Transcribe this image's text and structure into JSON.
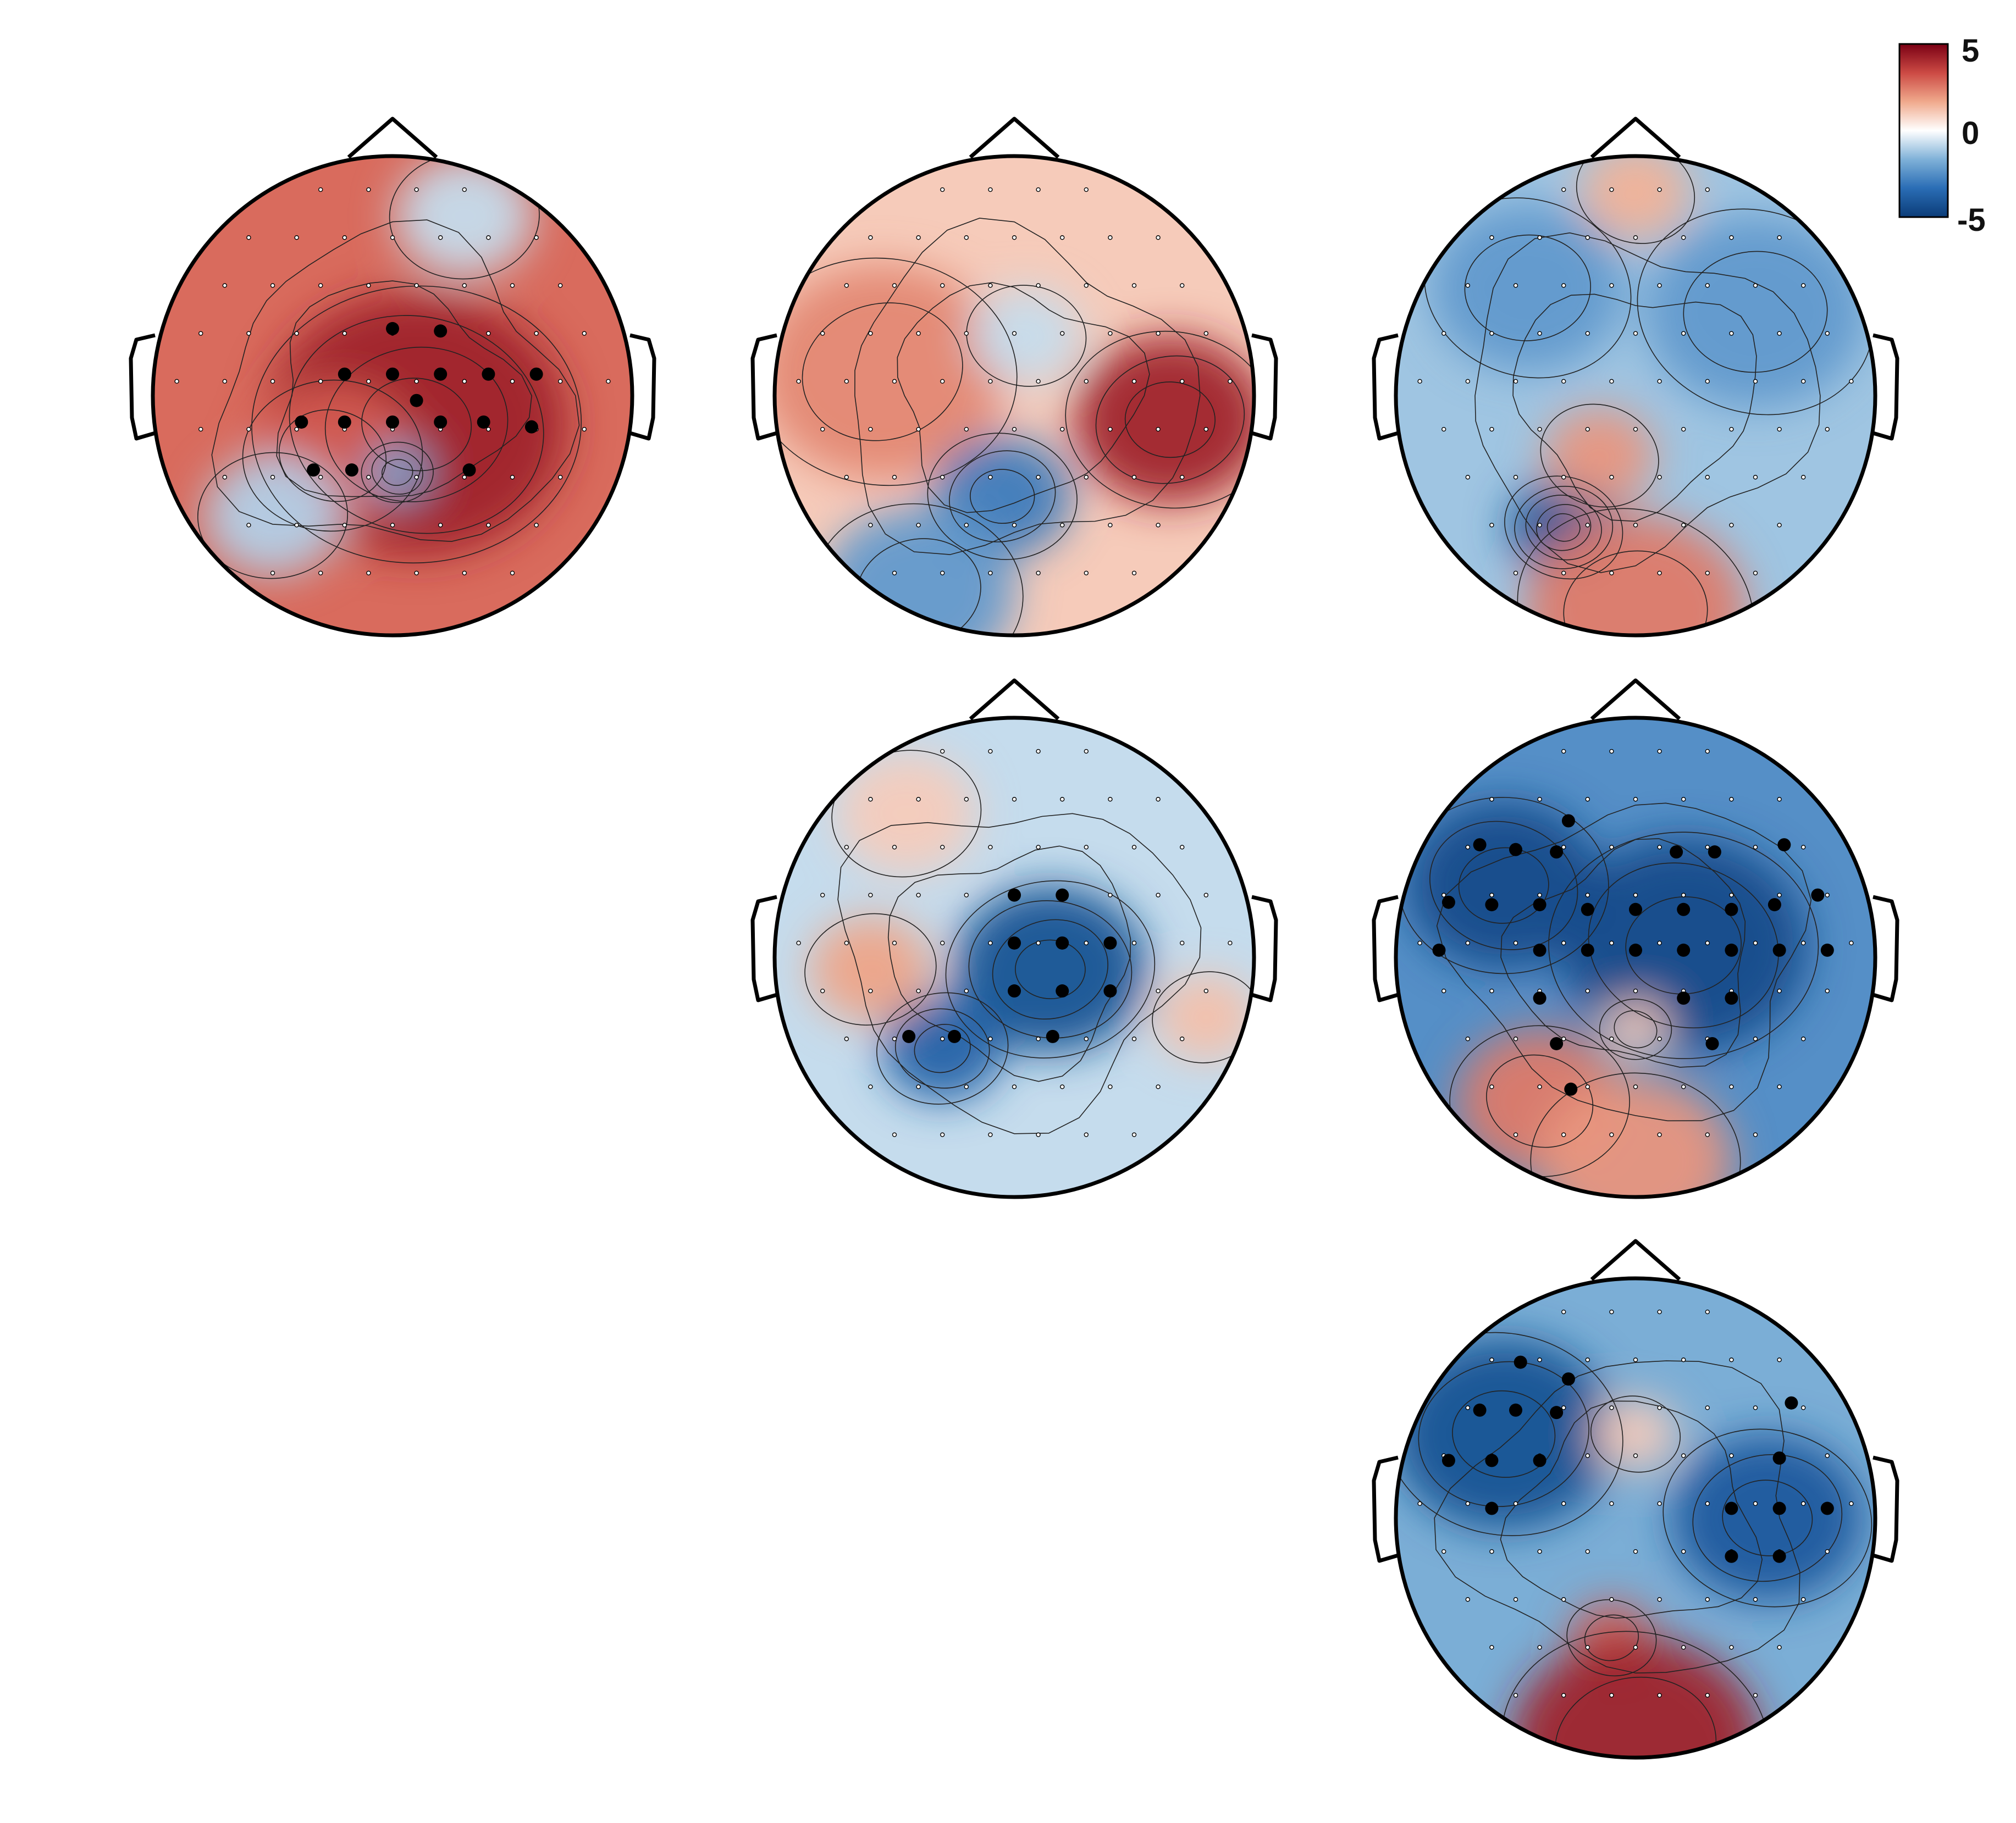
{
  "figure": {
    "colorbar": {
      "max_label": "5",
      "mid_label": "0",
      "min_label": "-5",
      "stops": [
        "#0b3c78",
        "#2a6db5",
        "#7fb1d8",
        "#ffffff",
        "#f0a98c",
        "#cc4a44",
        "#7a0014"
      ]
    },
    "head_outline_color": "#000000",
    "topoplots": [
      {
        "id": "row1-col1",
        "tint": 0.55,
        "blobs": [
          {
            "u": 0.1,
            "v": 0.12,
            "r": 0.55,
            "val": 0.85,
            "rings": 4
          },
          {
            "u": -0.25,
            "v": 0.25,
            "r": 0.3,
            "val": 0.6,
            "rings": 2
          },
          {
            "u": 0.02,
            "v": 0.32,
            "r": 0.12,
            "val": -0.4,
            "rings": 3
          },
          {
            "u": -0.5,
            "v": 0.5,
            "r": 0.25,
            "val": -0.2,
            "rings": 1
          },
          {
            "u": 0.3,
            "v": -0.75,
            "r": 0.25,
            "val": -0.15,
            "rings": 1
          }
        ],
        "sig_electrodes": [
          [
            0.0,
            -0.28
          ],
          [
            0.2,
            -0.27
          ],
          [
            -0.2,
            -0.09
          ],
          [
            0.0,
            -0.09
          ],
          [
            0.2,
            -0.09
          ],
          [
            0.4,
            -0.09
          ],
          [
            0.6,
            -0.09
          ],
          [
            0.1,
            0.02
          ],
          [
            -0.38,
            0.11
          ],
          [
            -0.2,
            0.11
          ],
          [
            0.0,
            0.11
          ],
          [
            0.2,
            0.11
          ],
          [
            0.38,
            0.11
          ],
          [
            0.58,
            0.13
          ],
          [
            -0.33,
            0.31
          ],
          [
            -0.17,
            0.31
          ],
          [
            0.32,
            0.31
          ]
        ]
      },
      {
        "id": "row1-col2",
        "tint": 0.2,
        "blobs": [
          {
            "u": 0.65,
            "v": 0.1,
            "r": 0.35,
            "val": 0.85,
            "rings": 3
          },
          {
            "u": -0.55,
            "v": -0.1,
            "r": 0.45,
            "val": 0.45,
            "rings": 2
          },
          {
            "u": -0.05,
            "v": 0.42,
            "r": 0.25,
            "val": -0.6,
            "rings": 3
          },
          {
            "u": -0.4,
            "v": 0.82,
            "r": 0.35,
            "val": -0.45,
            "rings": 2
          },
          {
            "u": 0.05,
            "v": -0.25,
            "r": 0.2,
            "val": -0.15,
            "rings": 1
          }
        ],
        "sig_electrodes": []
      },
      {
        "id": "row1-col3",
        "tint": -0.25,
        "blobs": [
          {
            "u": -0.3,
            "v": 0.55,
            "r": 0.2,
            "val": -0.85,
            "rings": 5
          },
          {
            "u": -0.45,
            "v": -0.45,
            "r": 0.35,
            "val": -0.45,
            "rings": 2
          },
          {
            "u": 0.5,
            "v": -0.35,
            "r": 0.4,
            "val": -0.45,
            "rings": 2
          },
          {
            "u": 0.0,
            "v": 0.9,
            "r": 0.4,
            "val": 0.5,
            "rings": 2
          },
          {
            "u": -0.15,
            "v": 0.25,
            "r": 0.2,
            "val": 0.4,
            "rings": 1
          },
          {
            "u": 0.0,
            "v": -0.85,
            "r": 0.2,
            "val": 0.3,
            "rings": 1
          }
        ],
        "sig_electrodes": []
      },
      {
        "id": "row2-col2",
        "tint": -0.15,
        "blobs": [
          {
            "u": 0.15,
            "v": 0.05,
            "r": 0.35,
            "val": -0.85,
            "rings": 4
          },
          {
            "u": -0.3,
            "v": 0.38,
            "r": 0.22,
            "val": -0.75,
            "rings": 3
          },
          {
            "u": -0.6,
            "v": 0.05,
            "r": 0.22,
            "val": 0.35,
            "rings": 1
          },
          {
            "u": 0.8,
            "v": 0.25,
            "r": 0.18,
            "val": 0.25,
            "rings": 1
          },
          {
            "u": -0.45,
            "v": -0.6,
            "r": 0.25,
            "val": 0.2,
            "rings": 1
          }
        ],
        "sig_electrodes": [
          [
            0.0,
            -0.26
          ],
          [
            0.2,
            -0.26
          ],
          [
            0.0,
            -0.06
          ],
          [
            0.2,
            -0.06
          ],
          [
            0.4,
            -0.06
          ],
          [
            0.0,
            0.14
          ],
          [
            0.2,
            0.14
          ],
          [
            0.4,
            0.14
          ],
          [
            -0.44,
            0.33
          ],
          [
            -0.25,
            0.33
          ],
          [
            0.16,
            0.33
          ]
        ]
      },
      {
        "id": "row2-col3",
        "tint": -0.5,
        "blobs": [
          {
            "u": -0.55,
            "v": -0.3,
            "r": 0.35,
            "val": -0.9,
            "rings": 3
          },
          {
            "u": 0.2,
            "v": -0.05,
            "r": 0.45,
            "val": -0.9,
            "rings": 3
          },
          {
            "u": -0.4,
            "v": 0.6,
            "r": 0.3,
            "val": 0.5,
            "rings": 2
          },
          {
            "u": 0.0,
            "v": 0.3,
            "r": 0.12,
            "val": 0.2,
            "rings": 2
          },
          {
            "u": 0.0,
            "v": 0.85,
            "r": 0.35,
            "val": 0.4,
            "rings": 1
          }
        ],
        "sig_electrodes": [
          [
            -0.28,
            -0.57
          ],
          [
            -0.65,
            -0.47
          ],
          [
            -0.5,
            -0.45
          ],
          [
            -0.33,
            -0.44
          ],
          [
            0.17,
            -0.44
          ],
          [
            0.33,
            -0.44
          ],
          [
            0.62,
            -0.47
          ],
          [
            -0.78,
            -0.23
          ],
          [
            -0.6,
            -0.22
          ],
          [
            -0.4,
            -0.22
          ],
          [
            -0.2,
            -0.2
          ],
          [
            0.0,
            -0.2
          ],
          [
            0.2,
            -0.2
          ],
          [
            0.4,
            -0.2
          ],
          [
            0.58,
            -0.22
          ],
          [
            0.76,
            -0.26
          ],
          [
            -0.82,
            -0.03
          ],
          [
            -0.4,
            -0.03
          ],
          [
            -0.2,
            -0.03
          ],
          [
            0.0,
            -0.03
          ],
          [
            0.2,
            -0.03
          ],
          [
            0.4,
            -0.03
          ],
          [
            0.6,
            -0.03
          ],
          [
            0.8,
            -0.03
          ],
          [
            -0.4,
            0.17
          ],
          [
            0.2,
            0.17
          ],
          [
            0.4,
            0.17
          ],
          [
            -0.33,
            0.36
          ],
          [
            -0.27,
            0.55
          ],
          [
            0.32,
            0.36
          ]
        ]
      },
      {
        "id": "row3-col3",
        "tint": -0.35,
        "blobs": [
          {
            "u": -0.55,
            "v": -0.35,
            "r": 0.4,
            "val": -0.85,
            "rings": 3
          },
          {
            "u": 0.55,
            "v": 0.0,
            "r": 0.35,
            "val": -0.8,
            "rings": 3
          },
          {
            "u": -0.1,
            "v": 0.5,
            "r": 0.15,
            "val": 0.6,
            "rings": 2
          },
          {
            "u": 0.0,
            "v": 0.95,
            "r": 0.45,
            "val": 0.85,
            "rings": 2
          },
          {
            "u": 0.0,
            "v": -0.35,
            "r": 0.15,
            "val": 0.2,
            "rings": 1
          }
        ],
        "sig_electrodes": [
          [
            -0.48,
            -0.65
          ],
          [
            -0.28,
            -0.58
          ],
          [
            -0.65,
            -0.45
          ],
          [
            -0.5,
            -0.45
          ],
          [
            -0.33,
            -0.44
          ],
          [
            -0.78,
            -0.24
          ],
          [
            -0.6,
            -0.24
          ],
          [
            -0.4,
            -0.24
          ],
          [
            0.65,
            -0.48
          ],
          [
            0.6,
            -0.25
          ],
          [
            -0.6,
            -0.04
          ],
          [
            0.4,
            -0.04
          ],
          [
            0.6,
            -0.04
          ],
          [
            0.8,
            -0.04
          ],
          [
            0.4,
            0.16
          ],
          [
            0.6,
            0.16
          ]
        ]
      }
    ]
  }
}
